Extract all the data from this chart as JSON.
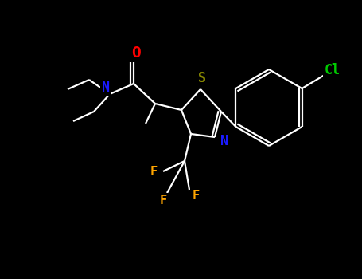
{
  "background_color": "#000000",
  "fig_width": 4.55,
  "fig_height": 3.5,
  "dpi": 100,
  "colors": {
    "bond": "#ffffff",
    "N": "#1a1aff",
    "O": "#ff0000",
    "S": "#8a8a00",
    "F": "#ffa500",
    "Cl": "#00cc00",
    "C": "#ffffff"
  }
}
